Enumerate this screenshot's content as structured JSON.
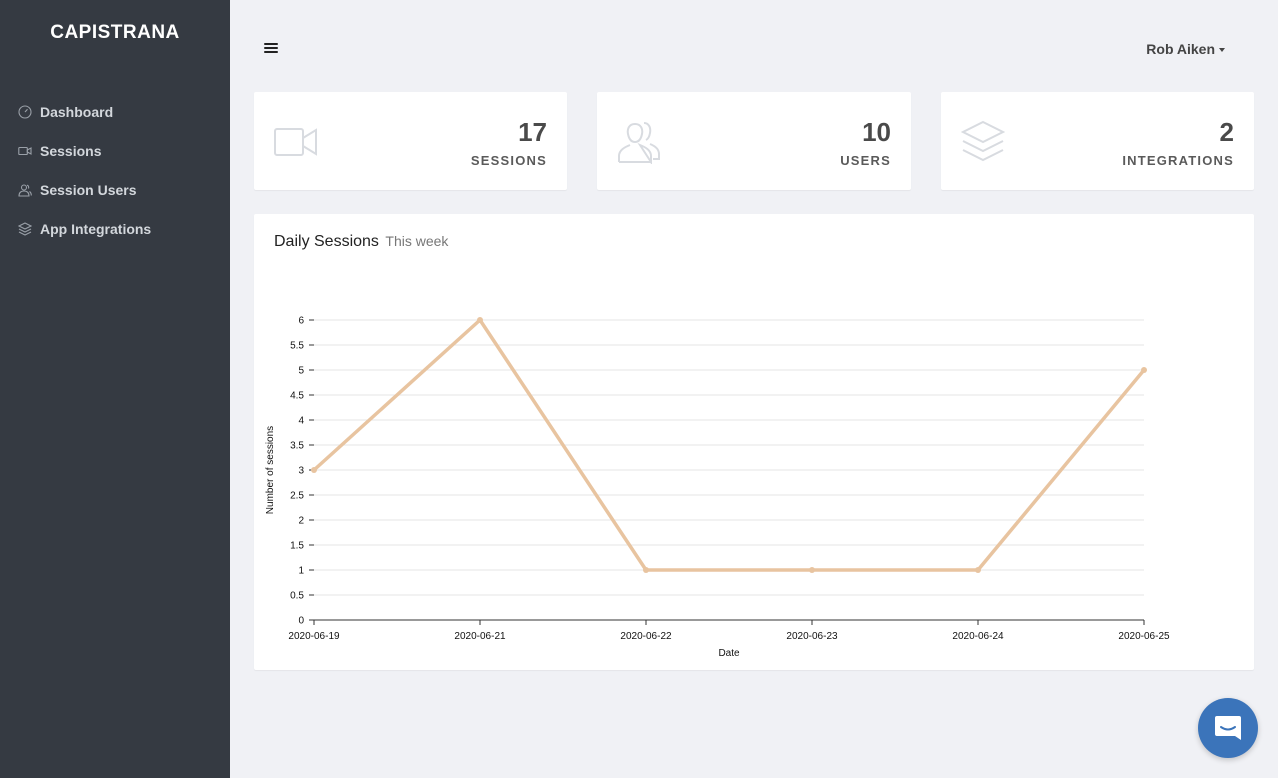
{
  "sidebar": {
    "brand": "CAPISTRANA",
    "items": [
      {
        "label": "Dashboard",
        "icon": "dashboard-gauge-icon"
      },
      {
        "label": "Sessions",
        "icon": "video-camera-icon"
      },
      {
        "label": "Session Users",
        "icon": "users-icon"
      },
      {
        "label": "App Integrations",
        "icon": "layers-icon"
      }
    ]
  },
  "header": {
    "user_name": "Rob Aiken"
  },
  "stats": [
    {
      "value": "17",
      "label": "SESSIONS",
      "icon": "video-camera-icon"
    },
    {
      "value": "10",
      "label": "USERS",
      "icon": "users-icon"
    },
    {
      "value": "2",
      "label": "INTEGRATIONS",
      "icon": "layers-icon"
    }
  ],
  "chart": {
    "title": "Daily Sessions",
    "subtitle": "This week"
  },
  "chart_data": {
    "type": "line",
    "categories": [
      "2020-06-19",
      "2020-06-21",
      "2020-06-22",
      "2020-06-23",
      "2020-06-24",
      "2020-06-25"
    ],
    "values": [
      3,
      6,
      1,
      1,
      1,
      5
    ],
    "xlabel": "Date",
    "ylabel": "Number of sessions",
    "ylim": [
      0,
      6
    ],
    "yticks": [
      "0",
      "0.5",
      "1",
      "1.5",
      "2",
      "2.5",
      "3",
      "3.5",
      "4",
      "4.5",
      "5",
      "5.5",
      "6"
    ],
    "grid": true,
    "line_color": "#e8c4a0"
  },
  "colors": {
    "sidebar_bg": "#353a42",
    "page_bg": "#f0f1f5",
    "accent": "#3b74ba"
  },
  "chat": {
    "icon": "chat-bubble-icon"
  }
}
